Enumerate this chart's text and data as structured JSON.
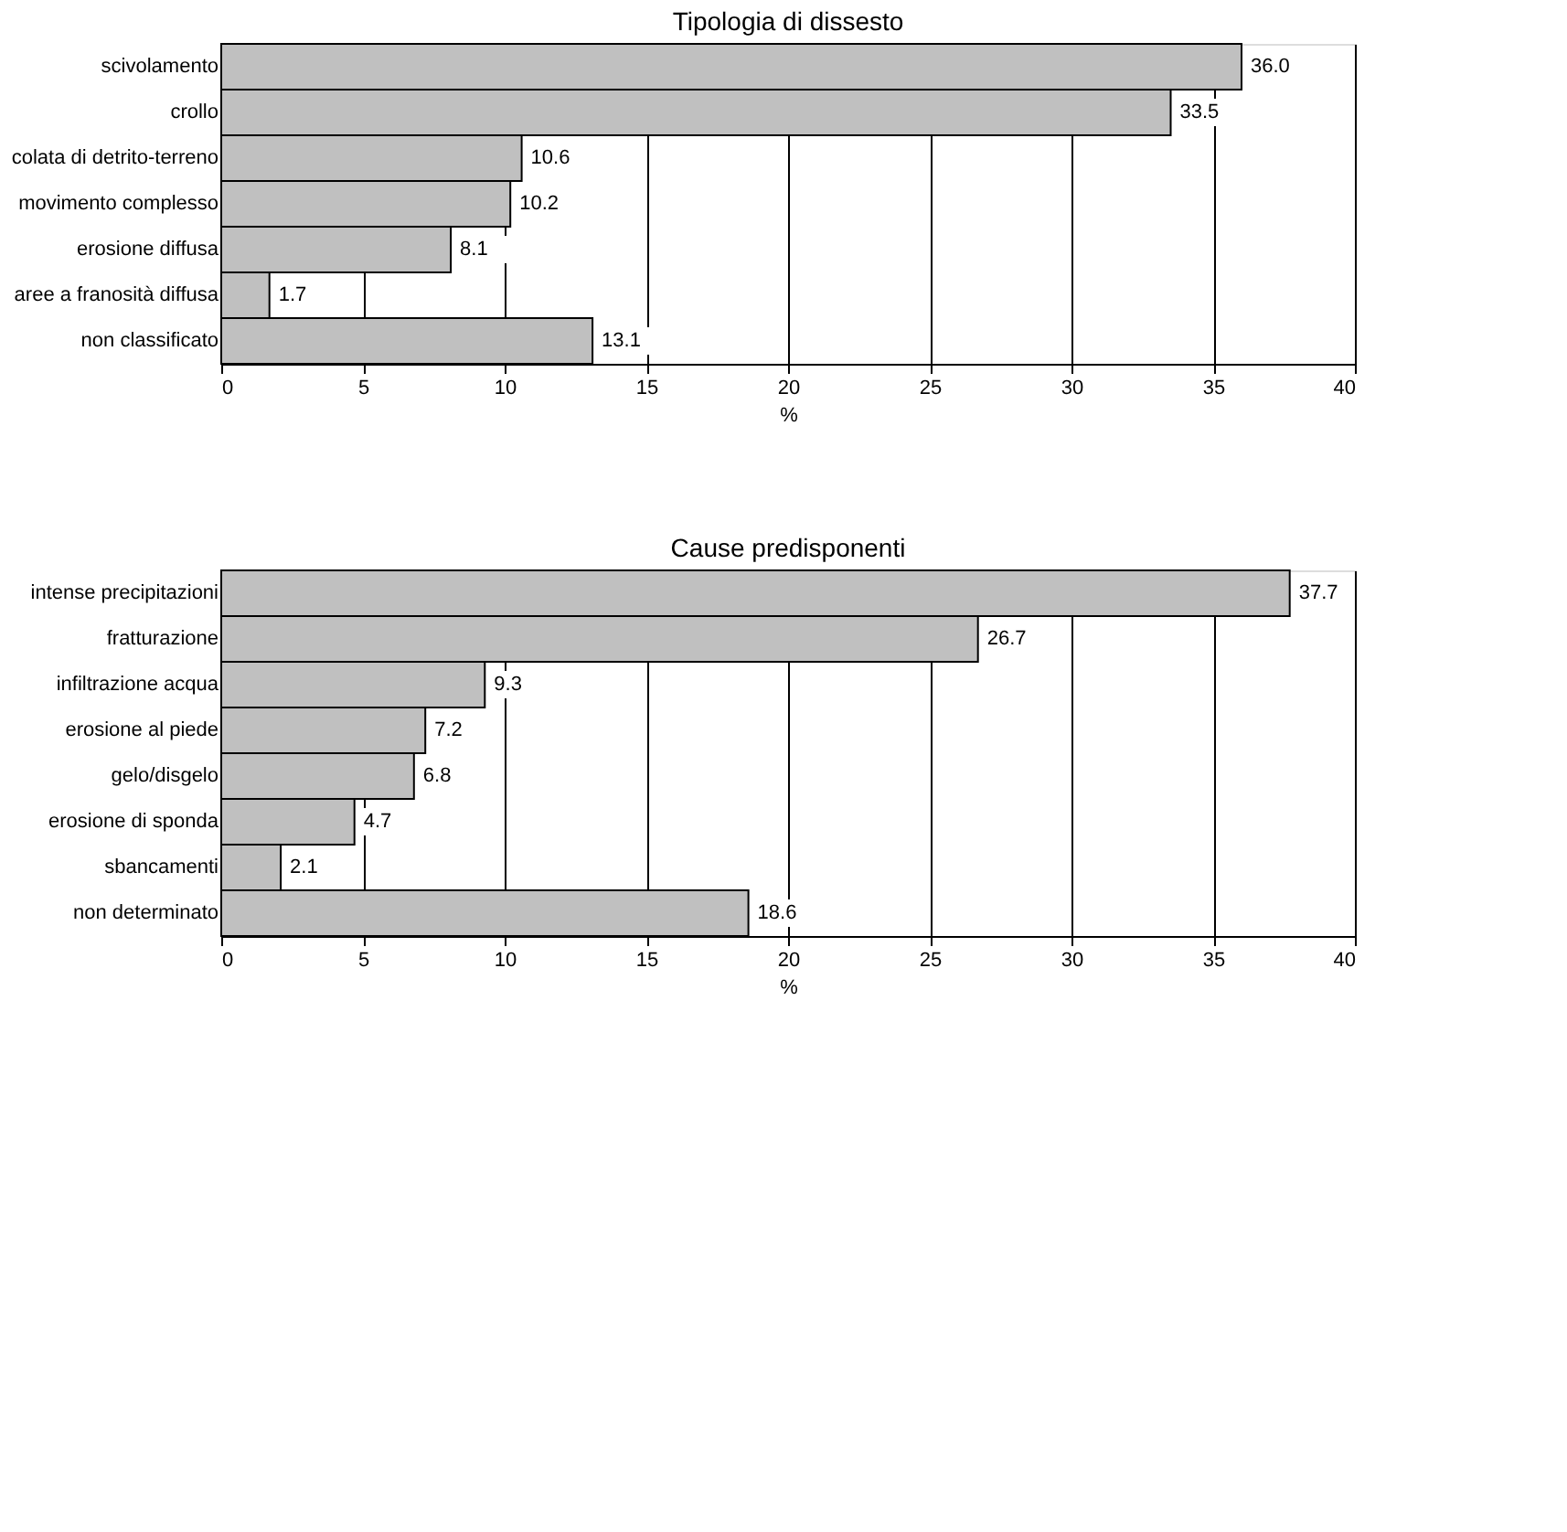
{
  "chart_data": [
    {
      "type": "bar",
      "orientation": "horizontal",
      "title": "Tipologia di dissesto",
      "xlabel": "%",
      "categories": [
        "scivolamento",
        "crollo",
        "colata di detrito-terreno",
        "movimento complesso",
        "erosione diffusa",
        "aree a franosità diffusa",
        "non classificato"
      ],
      "values": [
        36.0,
        33.5,
        10.6,
        10.2,
        8.1,
        1.7,
        13.1
      ],
      "value_labels": [
        "36.0",
        "33.5",
        "10.6",
        "10.2",
        "8.1",
        "1.7",
        "13.1"
      ],
      "color": "#c0c0c0",
      "xlim": [
        0,
        40
      ],
      "xticks": [
        0,
        5,
        10,
        15,
        20,
        25,
        30,
        35,
        40
      ],
      "grid": "x"
    },
    {
      "type": "bar",
      "orientation": "horizontal",
      "title": "Cause predisponenti",
      "xlabel": "%",
      "categories": [
        "intense precipitazioni",
        "fratturazione",
        "infiltrazione acqua",
        "erosione al piede",
        "gelo/disgelo",
        "erosione di sponda",
        "sbancamenti",
        "non determinato"
      ],
      "values": [
        37.7,
        26.7,
        9.3,
        7.2,
        6.8,
        4.7,
        2.1,
        18.6
      ],
      "value_labels": [
        "37.7",
        "26.7",
        "9.3",
        "7.2",
        "6.8",
        "4.7",
        "2.1",
        "18.6"
      ],
      "color": "#c0c0c0",
      "xlim": [
        0,
        40
      ],
      "xticks": [
        0,
        5,
        10,
        15,
        20,
        25,
        30,
        35,
        40
      ],
      "grid": "x"
    }
  ]
}
